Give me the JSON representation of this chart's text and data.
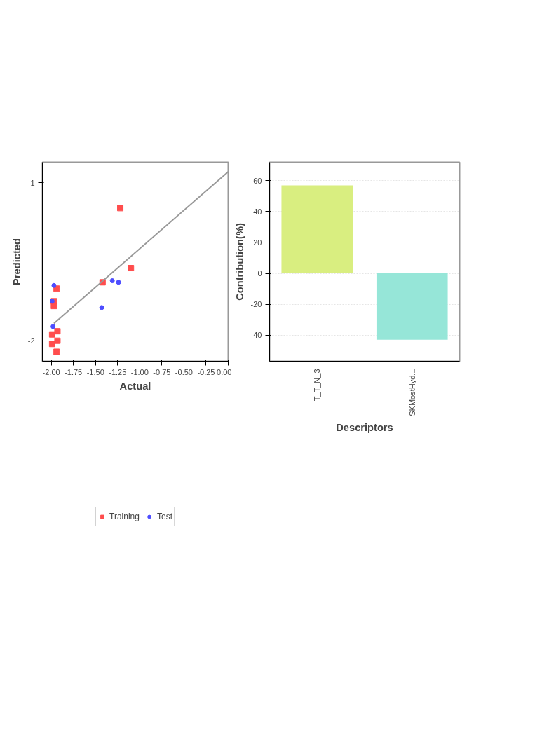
{
  "chart_data": [
    {
      "type": "scatter",
      "xlabel": "Actual",
      "ylabel": "Predicted",
      "xlim": [
        -2.1,
        0
      ],
      "ylim": [
        -2.13,
        -0.87
      ],
      "xticks": [
        {
          "value": -2,
          "label": "-2.00"
        },
        -1.75,
        {
          "value": -1.5,
          "label": "-1.50"
        },
        -1.25,
        {
          "value": -1,
          "label": "-1.00"
        },
        -0.75,
        {
          "value": -0.5,
          "label": "-0.50"
        },
        -0.25,
        {
          "value": 0,
          "label": "0.00"
        }
      ],
      "yticks": [
        -2,
        -1
      ],
      "grid": false,
      "legend": "bottom",
      "series": [
        {
          "name": "Training",
          "color": "#ff4d4d",
          "marker": "square",
          "x": [
            -1.22,
            -1.1,
            -1.42,
            -1.94,
            -1.97,
            -1.97,
            -1.93,
            -1.99,
            -1.99,
            -1.93,
            -1.94
          ],
          "values": [
            -1.16,
            -1.54,
            -1.63,
            -1.67,
            -1.75,
            -1.78,
            -1.94,
            -1.96,
            -2.02,
            -2.0,
            -2.07
          ]
        },
        {
          "name": "Test",
          "color": "#4d4dff",
          "marker": "circle",
          "x": [
            -1.97,
            -1.31,
            -1.24,
            -1.43,
            -1.99,
            -1.98
          ],
          "values": [
            -1.65,
            -1.62,
            -1.63,
            -1.79,
            -1.75,
            -1.91
          ]
        },
        {
          "type": "line",
          "color": "#999999",
          "x": [
            -1.97,
            0
          ],
          "values": [
            -1.89,
            -0.93
          ]
        }
      ]
    },
    {
      "type": "bar",
      "xlabel": "Descriptors",
      "ylabel": "Contribution(%)",
      "categories": [
        "T_T_N_3",
        "SKMostHyd..."
      ],
      "values": [
        57,
        -43
      ],
      "colors": [
        "#d9ee80",
        "#96e6d8"
      ],
      "ylim": [
        -57,
        72
      ],
      "yticks": [
        -40,
        -20,
        0,
        20,
        40,
        60
      ],
      "grid": "y"
    }
  ]
}
